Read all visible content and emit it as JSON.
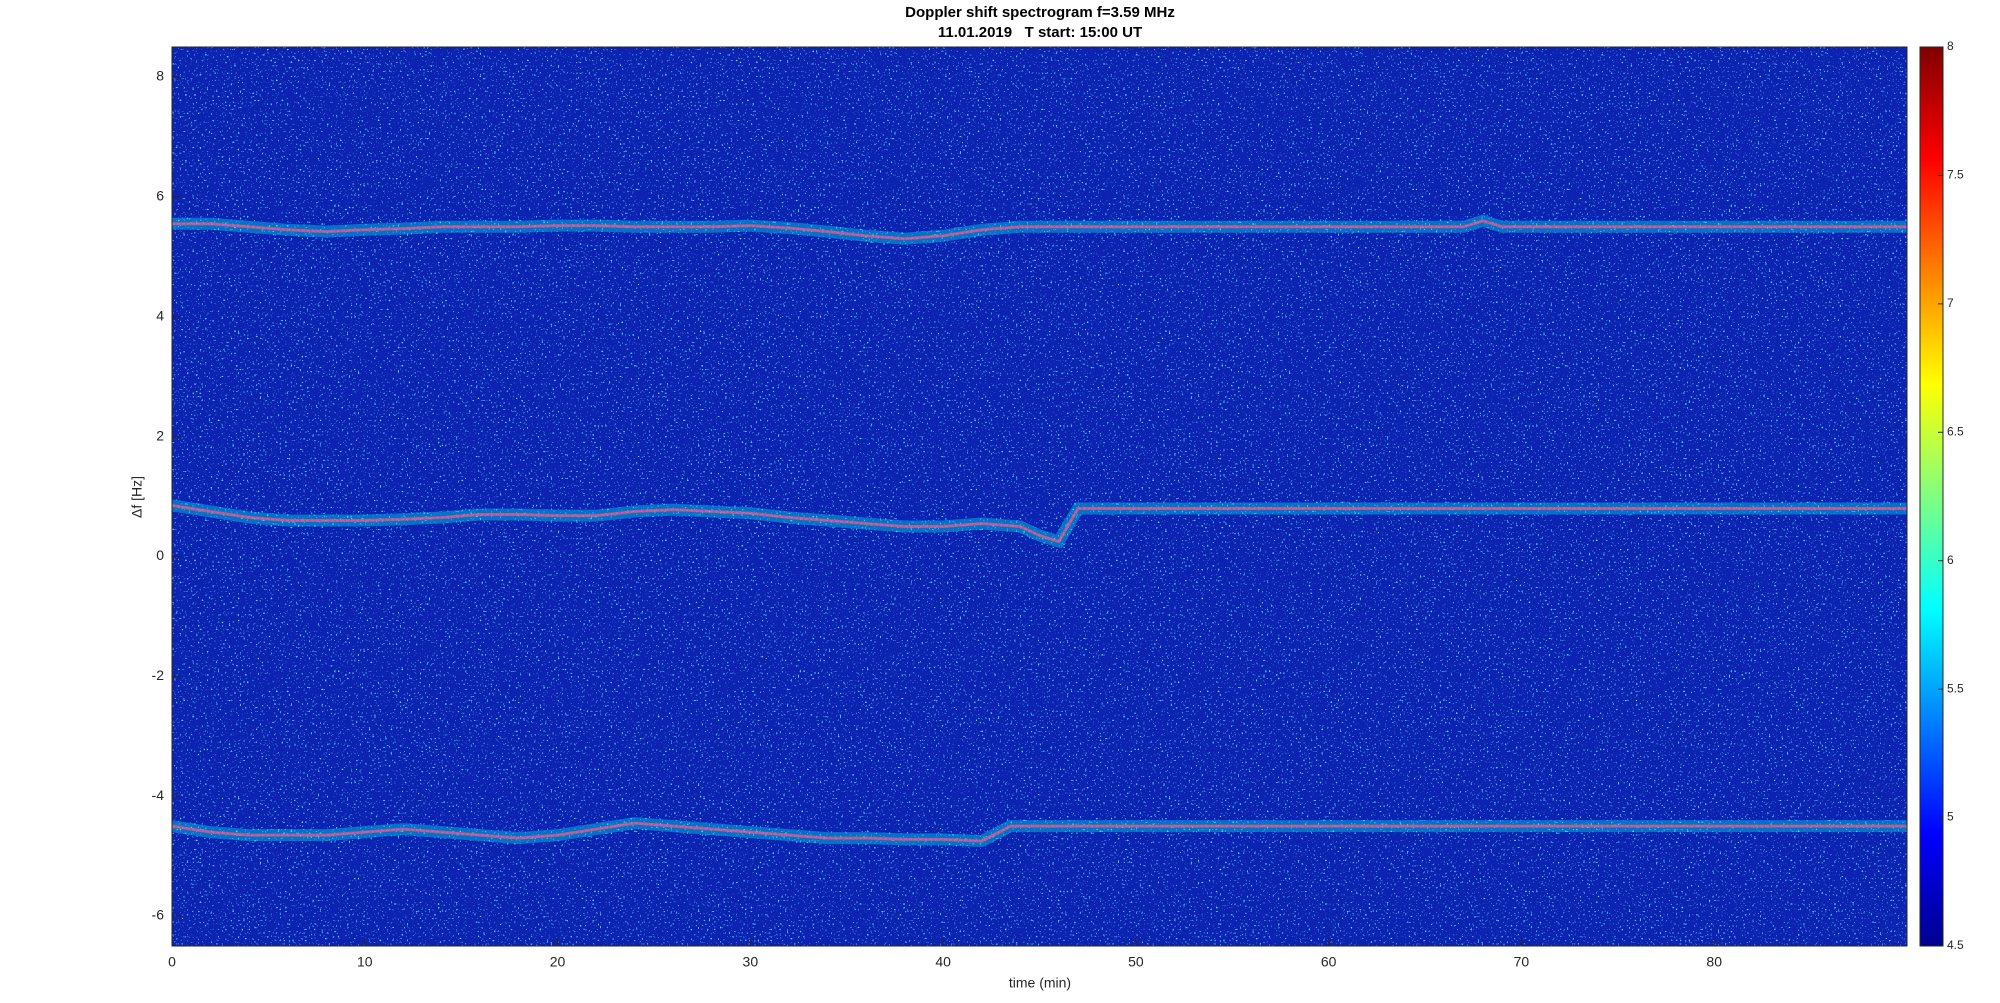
{
  "chart_data": {
    "type": "spectrogram",
    "title": "Doppler shift spectrogram f=3.59 MHz",
    "subtitle": "11.01.2019   T start: 15:00 UT",
    "x_label": "time (min)",
    "y_label": "Δf [Hz]",
    "xlim": [
      0,
      90
    ],
    "xticks": [
      0,
      10,
      20,
      30,
      40,
      50,
      60,
      70,
      80
    ],
    "ylim": [
      -6.5,
      8.5
    ],
    "yticks": [
      -6,
      -4,
      -2,
      0,
      2,
      4,
      6,
      8
    ],
    "background": "#0c22b0",
    "clim": [
      4.5,
      8
    ],
    "cticks": [
      4.5,
      5,
      5.5,
      6,
      6.5,
      7,
      7.5,
      8
    ],
    "colormap": [
      "#00008f",
      "#0000ff",
      "#0080ff",
      "#00ffff",
      "#80ff80",
      "#ffff00",
      "#ff8000",
      "#ff0000",
      "#800000"
    ],
    "series": [
      {
        "color": "#ff33ff",
        "x": [
          0,
          2,
          4,
          6,
          8,
          10,
          12,
          14,
          16,
          18,
          20,
          22,
          24,
          26,
          28,
          30,
          32,
          34,
          36,
          38,
          40,
          42,
          44,
          67,
          68,
          69,
          90
        ],
        "values": [
          5.55,
          5.55,
          5.5,
          5.45,
          5.42,
          5.45,
          5.47,
          5.5,
          5.5,
          5.5,
          5.52,
          5.52,
          5.5,
          5.5,
          5.5,
          5.52,
          5.48,
          5.42,
          5.35,
          5.3,
          5.35,
          5.45,
          5.5,
          5.5,
          5.6,
          5.5,
          5.5
        ]
      },
      {
        "color": "#ff33ff",
        "x": [
          0,
          2,
          4,
          6,
          8,
          10,
          12,
          14,
          16,
          18,
          20,
          22,
          24,
          26,
          28,
          30,
          32,
          34,
          36,
          38,
          40,
          42,
          44,
          45,
          46,
          47,
          90
        ],
        "values": [
          0.85,
          0.75,
          0.65,
          0.6,
          0.6,
          0.6,
          0.62,
          0.65,
          0.7,
          0.7,
          0.68,
          0.68,
          0.75,
          0.78,
          0.75,
          0.72,
          0.65,
          0.6,
          0.55,
          0.5,
          0.5,
          0.55,
          0.5,
          0.35,
          0.25,
          0.8,
          0.8
        ]
      },
      {
        "color": "#ff33ff",
        "x": [
          0,
          2,
          4,
          6,
          8,
          10,
          12,
          14,
          16,
          18,
          20,
          22,
          24,
          26,
          28,
          30,
          32,
          34,
          36,
          38,
          40,
          42,
          43.5,
          90
        ],
        "values": [
          -4.5,
          -4.6,
          -4.65,
          -4.65,
          -4.65,
          -4.6,
          -4.55,
          -4.6,
          -4.65,
          -4.7,
          -4.65,
          -4.55,
          -4.45,
          -4.5,
          -4.55,
          -4.6,
          -4.65,
          -4.7,
          -4.7,
          -4.72,
          -4.72,
          -4.75,
          -4.5,
          -4.5
        ]
      }
    ]
  }
}
